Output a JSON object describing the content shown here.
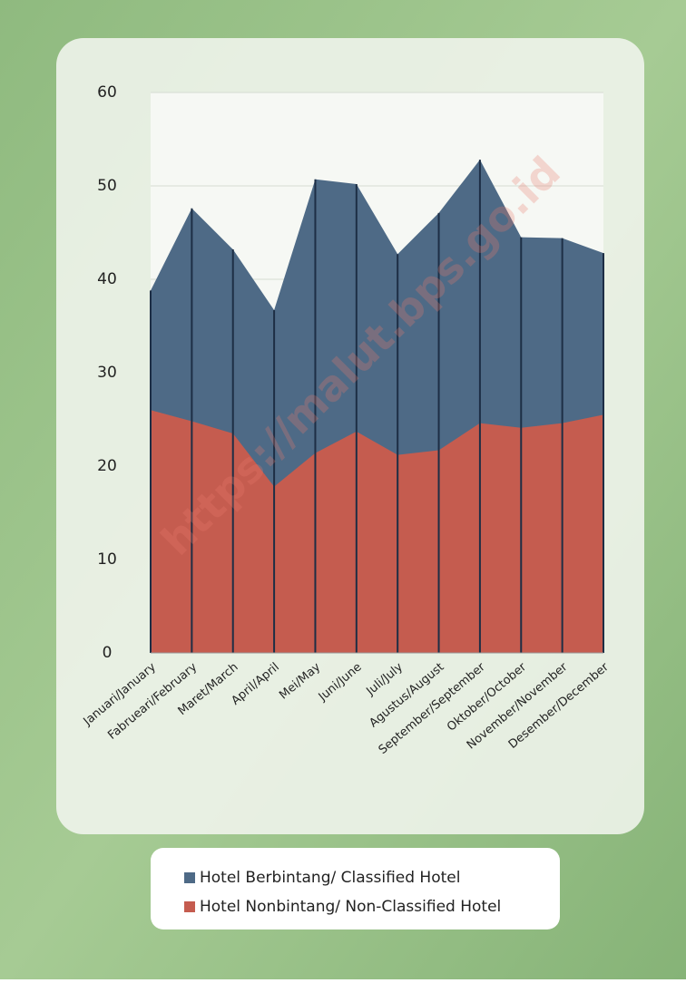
{
  "chart_data": {
    "type": "area",
    "watermark": "https://malut.bps.go.id",
    "categories": [
      "Januari/January",
      "Fabrueari/February",
      "Maret/March",
      "April/April",
      "Mei/May",
      "Juni/June",
      "Juli/July",
      "Agustus/August",
      "September/September",
      "Oktober/October",
      "November/November",
      "Desember/December"
    ],
    "series": [
      {
        "name": "Hotel Berbintang/ Classified Hotel",
        "color": "#4e6a86",
        "values": [
          38.8,
          47.6,
          43.2,
          36.7,
          50.7,
          50.2,
          42.7,
          47.1,
          52.8,
          44.5,
          44.4,
          42.8
        ]
      },
      {
        "name": "Hotel Nonbintang/ Non-Classified Hotel",
        "color": "#c55c4f",
        "values": [
          26.0,
          24.8,
          23.5,
          17.8,
          21.4,
          23.7,
          21.2,
          21.7,
          24.6,
          24.1,
          24.6,
          25.5
        ]
      }
    ],
    "ylim": [
      0,
      60
    ],
    "yticks": [
      0,
      10,
      20,
      30,
      40,
      50,
      60
    ],
    "grid": true
  }
}
